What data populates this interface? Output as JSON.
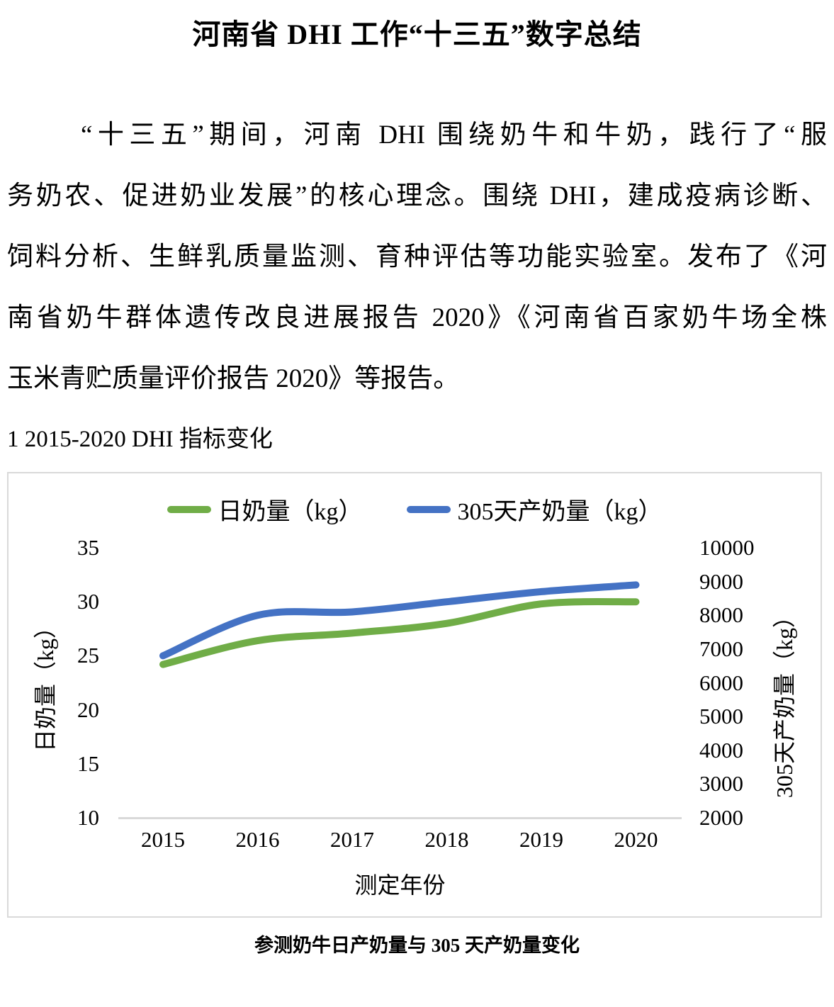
{
  "doc": {
    "title": "河南省 DHI 工作“十三五”数字总结",
    "paragraph_lines": [
      "“十三五”期间，河南 DHI 围绕奶牛和牛奶，践行了“服",
      "务奶农、促进奶业发展”的核心理念。围绕 DHI，建成疫病诊断、",
      "饲料分析、生鲜乳质量监测、育种评估等功能实验室。发布了《河",
      "南省奶牛群体遗传改良进展报告 2020》《河南省百家奶牛场全株",
      "玉米青贮质量评价报告 2020》等报告。"
    ],
    "section_heading": "1 2015-2020 DHI 指标变化",
    "figure_caption": "参测奶牛日产奶量与 305 天产奶量变化"
  },
  "chart_data": {
    "type": "line",
    "x": [
      2015,
      2016,
      2017,
      2018,
      2019,
      2020
    ],
    "xlabel": "测定年份",
    "series": [
      {
        "name": "日奶量（kg）",
        "axis": "left",
        "color": "#70AD47",
        "values": [
          24.2,
          26.4,
          27.1,
          28.0,
          29.8,
          30.0
        ]
      },
      {
        "name": "305天产奶量（kg）",
        "axis": "right",
        "color": "#4472C4",
        "values": [
          6800,
          8000,
          8100,
          8400,
          8700,
          8900
        ]
      }
    ],
    "left_axis": {
      "label": "日奶量（kg）",
      "range": [
        10,
        35
      ],
      "ticks": [
        35,
        30,
        25,
        20,
        15,
        10
      ]
    },
    "right_axis": {
      "label": "305天产奶量（kg）",
      "range": [
        2000,
        10000
      ],
      "ticks": [
        10000,
        9000,
        8000,
        7000,
        6000,
        5000,
        4000,
        3000,
        2000
      ]
    },
    "legend_position": "top",
    "grid": false,
    "axis_line_color": "#d9d9d9"
  }
}
